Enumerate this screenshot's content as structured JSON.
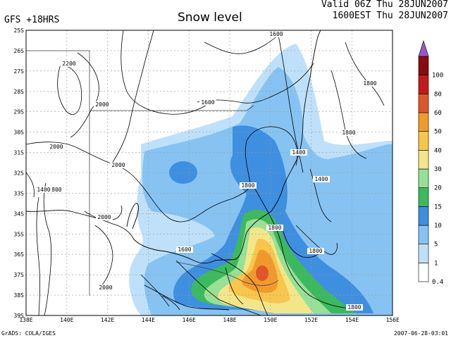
{
  "header": {
    "model_label": "GFS +18HRS",
    "title": "Snow level",
    "valid_line1": "Valid 06Z Thu 28JUN2007",
    "valid_line2": "1600EST Thu 28JUN2007"
  },
  "footer": {
    "credit": "GrADS: COLA/IGES",
    "datestamp": "2007-06-28-03:01"
  },
  "map": {
    "lat_labels": [
      "25S",
      "26S",
      "27S",
      "28S",
      "29S",
      "30S",
      "31S",
      "32S",
      "33S",
      "34S",
      "35S",
      "36S",
      "37S",
      "38S",
      "39S"
    ],
    "lon_labels": [
      "138E",
      "140E",
      "142E",
      "144E",
      "146E",
      "148E",
      "150E",
      "152E",
      "154E",
      "156E"
    ],
    "contour_labels": [
      {
        "text": "2200"
      },
      {
        "text": "2000"
      },
      {
        "text": "2000"
      },
      {
        "text": "2000"
      },
      {
        "text": "2000"
      },
      {
        "text": "2000"
      },
      {
        "text": "1800"
      },
      {
        "text": "1800"
      },
      {
        "text": "1800"
      },
      {
        "text": "1800"
      },
      {
        "text": "1800"
      },
      {
        "text": "1800"
      },
      {
        "text": "1800"
      },
      {
        "text": "1600"
      },
      {
        "text": "1600"
      },
      {
        "text": "1600"
      },
      {
        "text": "1400"
      },
      {
        "text": "1400"
      },
      {
        "text": "1400"
      }
    ]
  },
  "legend": {
    "levels": [
      "0.4",
      "1",
      "5",
      "10",
      "15",
      "20",
      "30",
      "40",
      "50",
      "60",
      "80",
      "100"
    ],
    "colors": [
      "#ffffff",
      "#bfe0fa",
      "#86c3f2",
      "#3f8fe0",
      "#3cb95c",
      "#98e096",
      "#f3e689",
      "#f8c64d",
      "#f19a2b",
      "#e0552a",
      "#c21a1a",
      "#8a0b0b",
      "#9a55c8"
    ]
  }
}
